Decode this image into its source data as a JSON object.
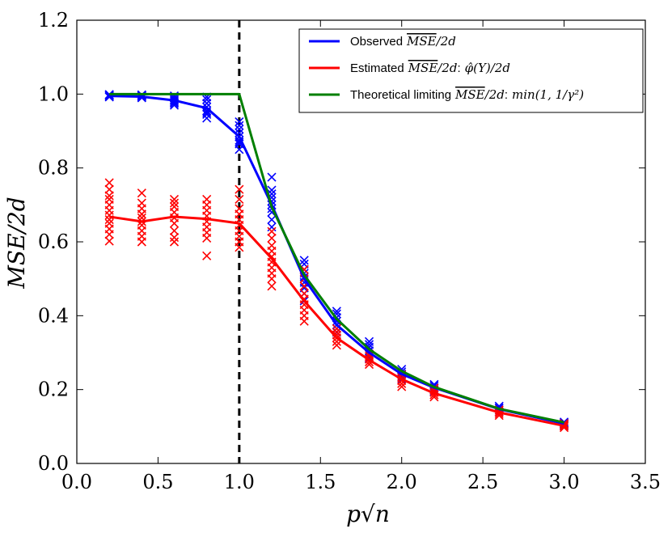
{
  "chart_data": {
    "type": "line",
    "title": "",
    "xlabel": "p√n",
    "ylabel": "MSE/2d",
    "xlim": [
      0.0,
      3.5
    ],
    "ylim": [
      0.0,
      1.2
    ],
    "x_ticks": [
      "0.0",
      "0.5",
      "1.0",
      "1.5",
      "2.0",
      "2.5",
      "3.0",
      "3.5"
    ],
    "y_ticks": [
      "0.0",
      "0.2",
      "0.4",
      "0.6",
      "0.8",
      "1.0",
      "1.2"
    ],
    "grid": false,
    "legend_position": "top-right",
    "vline": {
      "x": 1.0,
      "style": "dashed",
      "color": "#000000"
    },
    "series": [
      {
        "name": "Observed",
        "legend_label": "Observed MSE/2d",
        "color": "#0000ff",
        "x": [
          0.2,
          0.4,
          0.6,
          0.8,
          1.0,
          1.2,
          1.4,
          1.6,
          1.8,
          2.0,
          2.2,
          2.6,
          3.0
        ],
        "values": [
          0.995,
          0.993,
          0.983,
          0.962,
          0.885,
          0.7,
          0.5,
          0.375,
          0.3,
          0.242,
          0.205,
          0.147,
          0.108
        ],
        "scatter": [
          [
            0.995,
            0.998,
            0.993,
            0.999,
            0.996,
            0.992
          ],
          [
            0.994,
            0.998,
            0.99,
            0.996,
            0.992,
            0.997
          ],
          [
            0.97,
            0.978,
            0.985,
            0.99,
            0.975,
            0.995,
            0.982
          ],
          [
            0.935,
            0.945,
            0.955,
            0.965,
            0.975,
            0.985,
            0.95,
            0.992
          ],
          [
            0.85,
            0.865,
            0.875,
            0.885,
            0.895,
            0.905,
            0.915,
            0.925,
            0.87
          ],
          [
            0.64,
            0.66,
            0.68,
            0.7,
            0.71,
            0.72,
            0.73,
            0.74,
            0.775,
            0.69
          ],
          [
            0.44,
            0.46,
            0.475,
            0.49,
            0.505,
            0.515,
            0.525,
            0.54,
            0.55
          ],
          [
            0.355,
            0.365,
            0.375,
            0.385,
            0.395,
            0.405,
            0.412
          ],
          [
            0.285,
            0.295,
            0.305,
            0.315,
            0.322,
            0.33
          ],
          [
            0.228,
            0.235,
            0.242,
            0.248,
            0.255
          ],
          [
            0.195,
            0.2,
            0.205,
            0.21,
            0.214
          ],
          [
            0.14,
            0.145,
            0.15,
            0.155
          ],
          [
            0.103,
            0.107,
            0.11,
            0.112
          ]
        ]
      },
      {
        "name": "Estimated",
        "legend_label": "Estimated MSE/2d: φ̂(Y)/2d",
        "color": "#ff0000",
        "x": [
          0.2,
          0.4,
          0.6,
          0.8,
          1.0,
          1.2,
          1.4,
          1.6,
          1.8,
          2.0,
          2.2,
          2.6,
          3.0
        ],
        "values": [
          0.668,
          0.655,
          0.668,
          0.662,
          0.65,
          0.555,
          0.44,
          0.34,
          0.28,
          0.228,
          0.19,
          0.138,
          0.102
        ],
        "scatter": [
          [
            0.602,
            0.62,
            0.635,
            0.65,
            0.66,
            0.672,
            0.685,
            0.7,
            0.715,
            0.725,
            0.742,
            0.76
          ],
          [
            0.6,
            0.615,
            0.63,
            0.645,
            0.655,
            0.665,
            0.675,
            0.69,
            0.705,
            0.732
          ],
          [
            0.6,
            0.612,
            0.63,
            0.65,
            0.665,
            0.68,
            0.695,
            0.705,
            0.715
          ],
          [
            0.562,
            0.61,
            0.625,
            0.64,
            0.655,
            0.67,
            0.685,
            0.7,
            0.715
          ],
          [
            0.585,
            0.6,
            0.615,
            0.63,
            0.645,
            0.66,
            0.675,
            0.69,
            0.715,
            0.742
          ],
          [
            0.48,
            0.5,
            0.515,
            0.53,
            0.545,
            0.56,
            0.575,
            0.59,
            0.61,
            0.628
          ],
          [
            0.385,
            0.4,
            0.415,
            0.43,
            0.445,
            0.46,
            0.48,
            0.5,
            0.525
          ],
          [
            0.32,
            0.33,
            0.34,
            0.348,
            0.356,
            0.365
          ],
          [
            0.268,
            0.275,
            0.282,
            0.29,
            0.296
          ],
          [
            0.208,
            0.216,
            0.224,
            0.232,
            0.24
          ],
          [
            0.18,
            0.186,
            0.192,
            0.198,
            0.204
          ],
          [
            0.13,
            0.135,
            0.14,
            0.145
          ],
          [
            0.097,
            0.101,
            0.105,
            0.108
          ]
        ]
      },
      {
        "name": "Theoretical limiting",
        "legend_label": "Theoretical limiting MSE/2d: min(1, 1/γ²)",
        "color": "#007f00",
        "x": [
          0.2,
          0.4,
          0.6,
          0.8,
          1.0,
          1.2,
          1.4,
          1.6,
          1.8,
          2.0,
          2.2,
          2.6,
          3.0
        ],
        "values": [
          1.0,
          1.0,
          1.0,
          1.0,
          1.0,
          0.694,
          0.51,
          0.391,
          0.309,
          0.25,
          0.207,
          0.148,
          0.111
        ]
      }
    ]
  },
  "legend": {
    "observed_prefix": "Observed",
    "estimated_prefix": "Estimated",
    "theoretical_prefix": "Theoretical limiting",
    "mse_bar": "MSE",
    "over_2d": "/2d",
    "colon": ":",
    "phi_term": "φ̂(Y)/2d",
    "min_term": "min(1, 1/γ²)"
  }
}
